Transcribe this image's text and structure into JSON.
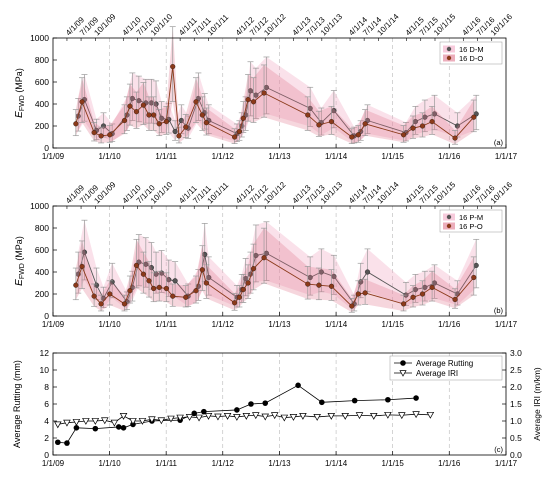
{
  "figure": {
    "top_dates": [
      "4/1/09",
      "7/1/09",
      "10/1/09",
      "4/1/10",
      "7/1/10",
      "10/1/10",
      "4/1/11",
      "7/1/11",
      "10/1/11",
      "4/1/12",
      "7/1/12",
      "10/1/12",
      "4/1/13",
      "7/1/13",
      "10/1/13",
      "4/1/14",
      "7/1/14",
      "10/1/14",
      "4/1/15",
      "7/1/15",
      "10/1/15",
      "4/1/16",
      "7/1/16",
      "10/1/16"
    ],
    "bottom_dates": [
      "1/1/09",
      "1/1/10",
      "1/1/11",
      "1/1/12",
      "1/1/13",
      "1/1/14",
      "1/1/15",
      "1/1/16",
      "1/1/17"
    ]
  },
  "chart_data": [
    {
      "type": "line",
      "panel_label": "(a)",
      "ylabel": "E_FWD (MPa)",
      "ylabel_main": "E",
      "ylabel_sub": "FWD",
      "ylabel_unit": " (MPa)",
      "ylim": [
        0,
        1000
      ],
      "yticks": [
        0,
        200,
        400,
        600,
        800,
        1000
      ],
      "xlim": [
        "2009-01-01",
        "2017-01-01"
      ],
      "legend": "top-right",
      "series": [
        {
          "name": "16 D-M",
          "color": "#555555",
          "band": "#f2a9c4",
          "x": [
            "2009-06-05",
            "2009-07-15",
            "2009-10-01",
            "2009-11-15",
            "2010-01-10",
            "2010-04-15",
            "2010-05-20",
            "2010-07-01",
            "2010-08-15",
            "2010-09-20",
            "2010-10-20",
            "2010-11-25",
            "2011-01-10",
            "2011-02-20",
            "2011-04-01",
            "2011-05-15",
            "2011-07-20",
            "2011-08-30",
            "2011-09-25",
            "2012-03-25",
            "2012-04-25",
            "2012-05-20",
            "2012-06-20",
            "2012-07-25",
            "2012-10-01",
            "2013-07-10",
            "2013-09-20",
            "2013-12-10",
            "2014-04-20",
            "2014-06-01",
            "2014-07-15",
            "2015-03-20",
            "2015-05-20",
            "2015-07-20",
            "2015-09-20",
            "2016-02-15",
            "2016-06-15"
          ],
          "y": [
            290,
            440,
            160,
            200,
            130,
            300,
            450,
            430,
            410,
            410,
            400,
            270,
            260,
            150,
            250,
            180,
            450,
            320,
            250,
            130,
            200,
            300,
            520,
            480,
            550,
            360,
            230,
            340,
            110,
            150,
            250,
            140,
            240,
            280,
            310,
            200,
            310
          ]
        },
        {
          "name": "16 D-O",
          "color": "#8b3a1a",
          "band": "#e07890",
          "x": [
            "2009-06-05",
            "2009-07-15",
            "2009-10-01",
            "2009-11-15",
            "2010-01-10",
            "2010-04-15",
            "2010-05-20",
            "2010-07-01",
            "2010-08-15",
            "2010-09-20",
            "2010-10-20",
            "2010-11-25",
            "2011-01-10",
            "2011-02-20",
            "2011-04-01",
            "2011-05-15",
            "2011-07-20",
            "2011-08-30",
            "2011-09-25",
            "2012-03-25",
            "2012-04-25",
            "2012-05-20",
            "2012-06-20",
            "2012-07-25",
            "2012-10-01",
            "2013-07-10",
            "2013-09-20",
            "2013-12-10",
            "2014-04-20",
            "2014-06-01",
            "2014-07-15",
            "2015-03-20",
            "2015-05-20",
            "2015-07-20",
            "2015-09-20",
            "2016-02-15",
            "2016-06-15"
          ],
          "y": [
            220,
            420,
            140,
            110,
            120,
            250,
            380,
            330,
            390,
            300,
            300,
            220,
            240,
            740,
            110,
            190,
            420,
            300,
            230,
            100,
            150,
            270,
            440,
            420,
            500,
            300,
            210,
            240,
            100,
            120,
            220,
            120,
            180,
            200,
            240,
            90,
            280
          ]
        }
      ]
    },
    {
      "type": "line",
      "panel_label": "(b)",
      "ylabel": "E_FWD (MPa)",
      "ylabel_main": "E",
      "ylabel_sub": "FWD",
      "ylabel_unit": " (MPa)",
      "ylim": [
        0,
        1000
      ],
      "yticks": [
        0,
        200,
        400,
        600,
        800,
        1000
      ],
      "xlim": [
        "2009-01-01",
        "2017-01-01"
      ],
      "legend": "top-right",
      "series": [
        {
          "name": "16 P-M",
          "color": "#555555",
          "band": "#f2a9c4",
          "x": [
            "2009-06-05",
            "2009-07-15",
            "2009-10-01",
            "2009-11-15",
            "2010-01-10",
            "2010-04-15",
            "2010-05-20",
            "2010-07-01",
            "2010-08-15",
            "2010-09-20",
            "2010-10-20",
            "2010-11-25",
            "2011-01-10",
            "2011-02-20",
            "2011-05-15",
            "2011-07-20",
            "2011-08-30",
            "2011-09-25",
            "2012-03-25",
            "2012-04-25",
            "2012-05-20",
            "2012-06-20",
            "2012-07-25",
            "2012-10-01",
            "2013-07-10",
            "2013-09-20",
            "2013-12-10",
            "2014-04-20",
            "2014-06-01",
            "2014-07-15",
            "2015-03-20",
            "2015-05-20",
            "2015-07-20",
            "2015-09-20",
            "2016-02-15",
            "2016-06-15"
          ],
          "y": [
            380,
            580,
            280,
            160,
            310,
            130,
            260,
            490,
            470,
            440,
            380,
            390,
            330,
            320,
            180,
            270,
            560,
            350,
            170,
            240,
            340,
            380,
            550,
            570,
            350,
            400,
            360,
            110,
            310,
            400,
            190,
            240,
            260,
            300,
            200,
            460
          ]
        },
        {
          "name": "16 P-O",
          "color": "#8b3a1a",
          "band": "#e07890",
          "x": [
            "2009-06-05",
            "2009-07-15",
            "2009-10-01",
            "2009-11-15",
            "2010-01-10",
            "2010-04-15",
            "2010-05-20",
            "2010-07-01",
            "2010-08-15",
            "2010-09-20",
            "2010-10-20",
            "2010-11-25",
            "2011-01-10",
            "2011-02-20",
            "2011-05-15",
            "2011-07-20",
            "2011-08-30",
            "2011-09-25",
            "2012-03-25",
            "2012-04-25",
            "2012-05-20",
            "2012-06-20",
            "2012-07-25",
            "2012-10-01",
            "2013-07-10",
            "2013-09-20",
            "2013-12-10",
            "2014-04-20",
            "2014-06-01",
            "2014-07-15",
            "2015-03-20",
            "2015-05-20",
            "2015-07-20",
            "2015-09-20",
            "2016-02-15",
            "2016-06-15"
          ],
          "y": [
            280,
            450,
            180,
            110,
            200,
            110,
            230,
            460,
            380,
            320,
            250,
            260,
            250,
            180,
            170,
            230,
            420,
            300,
            120,
            170,
            240,
            300,
            430,
            530,
            290,
            280,
            270,
            90,
            200,
            210,
            110,
            170,
            200,
            260,
            150,
            350
          ]
        }
      ]
    },
    {
      "type": "line",
      "panel_label": "(c)",
      "ylabel": "Average Rutting (mm)",
      "ylim": [
        0,
        12
      ],
      "yticks": [
        0,
        2,
        4,
        6,
        8,
        10,
        12
      ],
      "y2label": "Average IRI (m/km)",
      "y2lim": [
        0,
        3.0
      ],
      "y2ticks": [
        0.0,
        0.5,
        1.0,
        1.5,
        2.0,
        2.5,
        3.0
      ],
      "xlim": [
        "2009-01-01",
        "2017-01-01"
      ],
      "legend": "top-right",
      "series": [
        {
          "name": "Average Rutting",
          "axis": "left",
          "marker": "filled-circle",
          "color": "#000000",
          "x": [
            "2009-02-01",
            "2009-04-01",
            "2009-06-01",
            "2009-10-01",
            "2010-03-01",
            "2010-04-01",
            "2010-06-01",
            "2010-10-01",
            "2011-04-01",
            "2011-07-01",
            "2011-09-01",
            "2012-04-01",
            "2012-07-01",
            "2012-10-01",
            "2013-05-01",
            "2013-10-01",
            "2014-05-01",
            "2014-12-01",
            "2015-06-01"
          ],
          "y": [
            1.5,
            1.4,
            3.2,
            3.1,
            3.3,
            3.2,
            3.6,
            4.0,
            4.1,
            4.9,
            5.1,
            5.3,
            6.0,
            6.1,
            8.2,
            6.2,
            6.4,
            6.5,
            6.7
          ]
        },
        {
          "name": "Average IRI",
          "axis": "right",
          "marker": "open-triangle-down",
          "color": "#000000",
          "x": [
            "2009-02-01",
            "2009-04-01",
            "2009-06-01",
            "2009-08-01",
            "2009-10-01",
            "2009-12-01",
            "2010-02-01",
            "2010-04-01",
            "2010-06-01",
            "2010-08-01",
            "2010-10-01",
            "2010-12-01",
            "2011-02-01",
            "2011-04-01",
            "2011-06-01",
            "2011-08-01",
            "2011-10-01",
            "2011-12-01",
            "2012-02-01",
            "2012-04-01",
            "2012-06-01",
            "2012-08-01",
            "2012-10-01",
            "2012-12-01",
            "2013-02-01",
            "2013-04-01",
            "2013-06-01",
            "2013-09-01",
            "2013-12-01",
            "2014-03-01",
            "2014-06-01",
            "2014-09-01",
            "2014-12-01",
            "2015-03-01",
            "2015-06-01",
            "2015-09-01"
          ],
          "y": [
            0.9,
            0.95,
            0.97,
            1.0,
            1.0,
            1.02,
            0.95,
            1.15,
            1.0,
            1.0,
            1.05,
            1.02,
            1.07,
            1.1,
            1.12,
            1.1,
            1.15,
            1.13,
            1.15,
            1.12,
            1.15,
            1.17,
            1.13,
            1.17,
            1.1,
            1.12,
            1.15,
            1.12,
            1.15,
            1.15,
            1.17,
            1.15,
            1.18,
            1.17,
            1.2,
            1.18
          ]
        }
      ]
    }
  ]
}
